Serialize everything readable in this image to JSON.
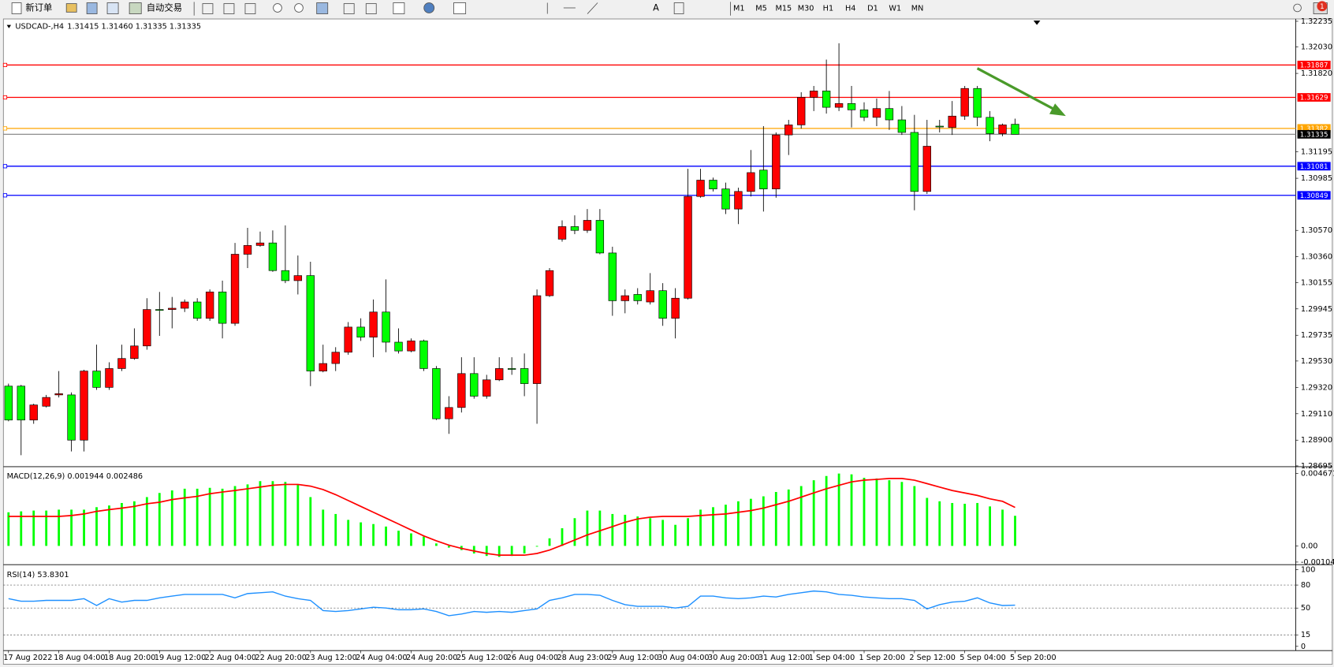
{
  "toolbar": {
    "new_order": "新订单",
    "auto_trading": "自动交易",
    "text_tool": "A",
    "timeframes": [
      "M1",
      "M5",
      "M15",
      "M30",
      "H1",
      "H4",
      "D1",
      "W1",
      "MN"
    ],
    "badge": "1"
  },
  "chart_data": [
    {
      "type": "candlestick",
      "title": "USDCAD-,H4",
      "subtitle": "1.31415 1.31460 1.31335 1.31335",
      "categories": [
        "17 Aug 2022",
        null,
        null,
        null,
        "18 Aug 04:00",
        null,
        null,
        null,
        "18 Aug 20:00",
        null,
        null,
        null,
        "19 Aug 12:00",
        null,
        null,
        null,
        "22 Aug 04:00",
        null,
        null,
        null,
        "22 Aug 20:00",
        null,
        null,
        null,
        "23 Aug 12:00",
        null,
        null,
        null,
        "24 Aug 04:00",
        null,
        null,
        null,
        "24 Aug 20:00",
        null,
        null,
        null,
        "25 Aug 12:00",
        null,
        null,
        null,
        "26 Aug 04:00",
        null,
        null,
        null,
        "28 Aug 23:00",
        null,
        null,
        null,
        "29 Aug 12:00",
        null,
        null,
        null,
        "30 Aug 04:00",
        null,
        null,
        null,
        "30 Aug 20:00",
        null,
        null,
        null,
        "31 Aug 12:00",
        null,
        null,
        null,
        "1 Sep 04:00",
        null,
        null,
        null,
        "1 Sep 20:00",
        null,
        null,
        null,
        "2 Sep 12:00",
        null,
        null,
        null,
        "5 Sep 04:00",
        null,
        null,
        null,
        "5 Sep 20:00"
      ],
      "open": [
        1.2933,
        1.2933,
        1.2906,
        1.2917,
        1.2926,
        1.2926,
        1.289,
        1.2945,
        1.2932,
        1.2947,
        1.2955,
        1.2965,
        1.2994,
        1.2994,
        1.2995,
        1.3,
        1.2987,
        1.3008,
        1.2983,
        1.3038,
        1.3045,
        1.3047,
        1.3025,
        1.3017,
        1.3021,
        1.2945,
        1.2951,
        1.296,
        1.298,
        1.2972,
        1.2992,
        1.2968,
        1.2961,
        1.2969,
        1.2947,
        1.2907,
        1.2916,
        1.2943,
        1.2925,
        1.2938,
        1.2947,
        1.2947,
        1.2935,
        1.3005,
        1.305,
        1.306,
        1.3057,
        1.3065,
        1.3039,
        1.3001,
        1.3006,
        1.3,
        1.3009,
        1.2987,
        1.3003,
        1.3084,
        1.3097,
        1.309,
        1.3074,
        1.3088,
        1.3105,
        1.309,
        1.3133,
        1.3141,
        1.3163,
        1.3168,
        1.3155,
        1.3158,
        1.3153,
        1.3147,
        1.3154,
        1.3145,
        1.3135,
        1.3088,
        1.314,
        1.3139,
        1.3148,
        1.317,
        1.3147,
        1.3134,
        1.31415
      ],
      "high": [
        1.2935,
        1.2934,
        1.2919,
        1.2926,
        1.2945,
        1.2928,
        1.2946,
        1.2966,
        1.2952,
        1.2966,
        1.2979,
        1.3003,
        1.3008,
        1.3004,
        1.3002,
        1.3003,
        1.301,
        1.3017,
        1.3047,
        1.3059,
        1.3056,
        1.3057,
        1.3061,
        1.3037,
        1.3032,
        1.2966,
        1.2964,
        1.2984,
        1.2987,
        1.3002,
        1.3018,
        1.2979,
        1.2971,
        1.297,
        1.2949,
        1.2925,
        1.2956,
        1.2956,
        1.2942,
        1.2956,
        1.2956,
        1.2959,
        1.301,
        1.3027,
        1.3065,
        1.3069,
        1.3074,
        1.3074,
        1.3044,
        1.301,
        1.3011,
        1.3023,
        1.3015,
        1.3011,
        1.3106,
        1.3106,
        1.3099,
        1.3095,
        1.3091,
        1.3121,
        1.314,
        1.3135,
        1.3145,
        1.3167,
        1.3172,
        1.3193,
        1.3206,
        1.3172,
        1.3159,
        1.3162,
        1.3168,
        1.3156,
        1.3149,
        1.3145,
        1.3145,
        1.316,
        1.3172,
        1.3172,
        1.3152,
        1.3142,
        1.3146
      ],
      "low": [
        1.2905,
        1.2878,
        1.2903,
        1.2916,
        1.2924,
        1.2881,
        1.2881,
        1.293,
        1.293,
        1.2945,
        1.2954,
        1.2962,
        1.2973,
        1.2979,
        1.2992,
        1.2985,
        1.2985,
        1.2971,
        1.2981,
        1.3027,
        1.3044,
        1.3024,
        1.3015,
        1.3006,
        1.2933,
        1.2944,
        1.2945,
        1.2958,
        1.2969,
        1.2956,
        1.296,
        1.2959,
        1.296,
        1.2945,
        1.2906,
        1.2895,
        1.2912,
        1.2923,
        1.2923,
        1.2937,
        1.2942,
        1.2925,
        1.2903,
        1.3004,
        1.3048,
        1.3054,
        1.3055,
        1.3038,
        1.2989,
        1.2991,
        1.2998,
        1.2998,
        1.2981,
        1.2971,
        1.3002,
        1.3083,
        1.3088,
        1.307,
        1.3062,
        1.3084,
        1.3072,
        1.3083,
        1.3117,
        1.3138,
        1.3152,
        1.315,
        1.3152,
        1.3139,
        1.3144,
        1.314,
        1.3137,
        1.3133,
        1.3073,
        1.3086,
        1.3135,
        1.3133,
        1.3145,
        1.314,
        1.3128,
        1.3132,
        1.31335
      ],
      "close": [
        1.2906,
        1.2906,
        1.2918,
        1.2924,
        1.2927,
        1.289,
        1.2945,
        1.2932,
        1.2947,
        1.2955,
        1.2965,
        1.2994,
        1.2994,
        1.2995,
        1.3,
        1.2987,
        1.3008,
        1.2983,
        1.3038,
        1.3045,
        1.3047,
        1.3025,
        1.3017,
        1.3021,
        1.2945,
        1.2951,
        1.296,
        1.298,
        1.2972,
        1.2992,
        1.2968,
        1.2961,
        1.2969,
        1.2947,
        1.2907,
        1.2916,
        1.2943,
        1.2925,
        1.2938,
        1.2947,
        1.2947,
        1.2935,
        1.3005,
        1.3025,
        1.306,
        1.3057,
        1.3065,
        1.3039,
        1.3001,
        1.3005,
        1.3001,
        1.3009,
        1.2987,
        1.3003,
        1.3084,
        1.3097,
        1.309,
        1.3074,
        1.3088,
        1.3103,
        1.309,
        1.3133,
        1.3141,
        1.3163,
        1.3168,
        1.3155,
        1.3158,
        1.3153,
        1.3147,
        1.3154,
        1.3145,
        1.3135,
        1.3088,
        1.3124,
        1.314,
        1.3148,
        1.317,
        1.3147,
        1.3134,
        1.3141,
        1.31335
      ],
      "up_color": "#ff0000",
      "down_color": "#00ff00",
      "ylim": [
        1.28695,
        1.3224
      ],
      "yticks": [
        1.32235,
        {
          "value": 1.3203,
          "label": "1.32030"
        },
        {
          "value": 1.3182,
          "label": "1.31820"
        },
        1.31195,
        1.30985,
        {
          "value": 1.3057,
          "label": "1.30570"
        },
        {
          "value": 1.3036,
          "label": "1.30360"
        },
        1.30155,
        1.29945,
        1.29735,
        {
          "value": 1.2953,
          "label": "1.29530"
        },
        {
          "value": 1.2932,
          "label": "1.29320"
        },
        {
          "value": 1.2911,
          "label": "1.29110"
        },
        {
          "value": 1.289,
          "label": "1.28900"
        },
        1.28695
      ],
      "levels": [
        {
          "value": 1.31887,
          "color": "#ff0000"
        },
        {
          "value": 1.31629,
          "color": "#ff0000"
        },
        {
          "value": 1.31382,
          "color": "#ffa500"
        },
        {
          "value": 1.31081,
          "color": "#0000ff"
        },
        {
          "value": 1.30849,
          "color": "#0000ff"
        }
      ],
      "current_price": {
        "value": 1.31335,
        "color": "#000000"
      }
    },
    {
      "type": "macd",
      "title": "MACD(12,26,9) 0.001944 0.002486",
      "color": "#00ff00",
      "signal_color": "#ff0000",
      "values": [
        0.00217,
        0.00223,
        0.00228,
        0.00228,
        0.00234,
        0.00234,
        0.00234,
        0.0025,
        0.00261,
        0.00277,
        0.00288,
        0.00315,
        0.00342,
        0.00358,
        0.00369,
        0.00369,
        0.00375,
        0.00369,
        0.00386,
        0.00397,
        0.00418,
        0.00418,
        0.00413,
        0.00397,
        0.00315,
        0.00234,
        0.00206,
        0.00168,
        0.00152,
        0.00141,
        0.00125,
        0.00098,
        0.00081,
        0.0006,
        0.00016,
        -0.00011,
        -0.00027,
        -0.00049,
        -0.00065,
        -0.00071,
        -0.00065,
        -0.00049,
        -5e-05,
        0.00049,
        0.00114,
        0.00179,
        0.00228,
        0.00228,
        0.00206,
        0.00201,
        0.0019,
        0.00179,
        0.00168,
        0.00136,
        0.00179,
        0.00234,
        0.0025,
        0.00266,
        0.00288,
        0.00304,
        0.0032,
        0.00348,
        0.00364,
        0.00386,
        0.00424,
        0.00451,
        0.00467,
        0.00462,
        0.0044,
        0.00435,
        0.00424,
        0.00413,
        0.00386,
        0.0031,
        0.00288,
        0.00277,
        0.00272,
        0.00277,
        0.00255,
        0.00234,
        0.001944
      ],
      "signal": [
        0.0019,
        0.0019,
        0.0019,
        0.0019,
        0.0019,
        0.00196,
        0.00206,
        0.00223,
        0.00234,
        0.00244,
        0.00255,
        0.00272,
        0.00282,
        0.00299,
        0.0031,
        0.0032,
        0.00337,
        0.00348,
        0.00358,
        0.00369,
        0.0038,
        0.00391,
        0.00397,
        0.00397,
        0.00386,
        0.00364,
        0.00331,
        0.00293,
        0.00255,
        0.00217,
        0.00179,
        0.00141,
        0.00103,
        0.00065,
        0.00033,
        5e-05,
        -0.00016,
        -0.00033,
        -0.00049,
        -0.0006,
        -0.0006,
        -0.0006,
        -0.00049,
        -0.00027,
        5e-05,
        0.00038,
        0.00071,
        0.00098,
        0.00125,
        0.00152,
        0.00174,
        0.00185,
        0.0019,
        0.0019,
        0.0019,
        0.00196,
        0.00201,
        0.00206,
        0.00217,
        0.00228,
        0.00244,
        0.00266,
        0.00288,
        0.00315,
        0.00342,
        0.00369,
        0.00391,
        0.00413,
        0.00424,
        0.00429,
        0.00435,
        0.00435,
        0.00424,
        0.00402,
        0.0038,
        0.00358,
        0.00342,
        0.00326,
        0.00304,
        0.00288,
        0.002486
      ],
      "ylim": [
        -0.001044,
        0.004671
      ],
      "yticks": [
        0.004671,
        {
          "value": 0,
          "label": "0.00"
        },
        -0.001044
      ]
    },
    {
      "type": "line",
      "title": "RSI(14) 53.8301",
      "color": "#1e90ff",
      "values": [
        62.2,
        58.9,
        58.9,
        60,
        60,
        60,
        62.2,
        53.3,
        62.2,
        57.8,
        60,
        60,
        63.3,
        65.6,
        67.8,
        67.8,
        67.8,
        67.8,
        63.3,
        68.9,
        70,
        71.1,
        65.6,
        62.2,
        60,
        46.7,
        45.6,
        46.7,
        48.9,
        51.1,
        50,
        47.8,
        47.8,
        48.9,
        45.6,
        40,
        42.2,
        45.6,
        44.4,
        45.6,
        44.4,
        46.7,
        48.9,
        60,
        63.3,
        67.8,
        67.8,
        66.7,
        60,
        54.4,
        52.2,
        52.2,
        52.2,
        50,
        52.2,
        65.6,
        65.6,
        63.3,
        62.2,
        63.3,
        65.6,
        64.4,
        67.8,
        70,
        72.2,
        71.1,
        67.8,
        66.7,
        64.4,
        63.3,
        62.2,
        62.2,
        60,
        48.9,
        54.4,
        57.8,
        58.9,
        63.3,
        56.7,
        53.3,
        53.8301
      ],
      "ylim": [
        0,
        100
      ],
      "yticks": [
        100,
        80,
        50,
        15,
        0
      ]
    }
  ]
}
